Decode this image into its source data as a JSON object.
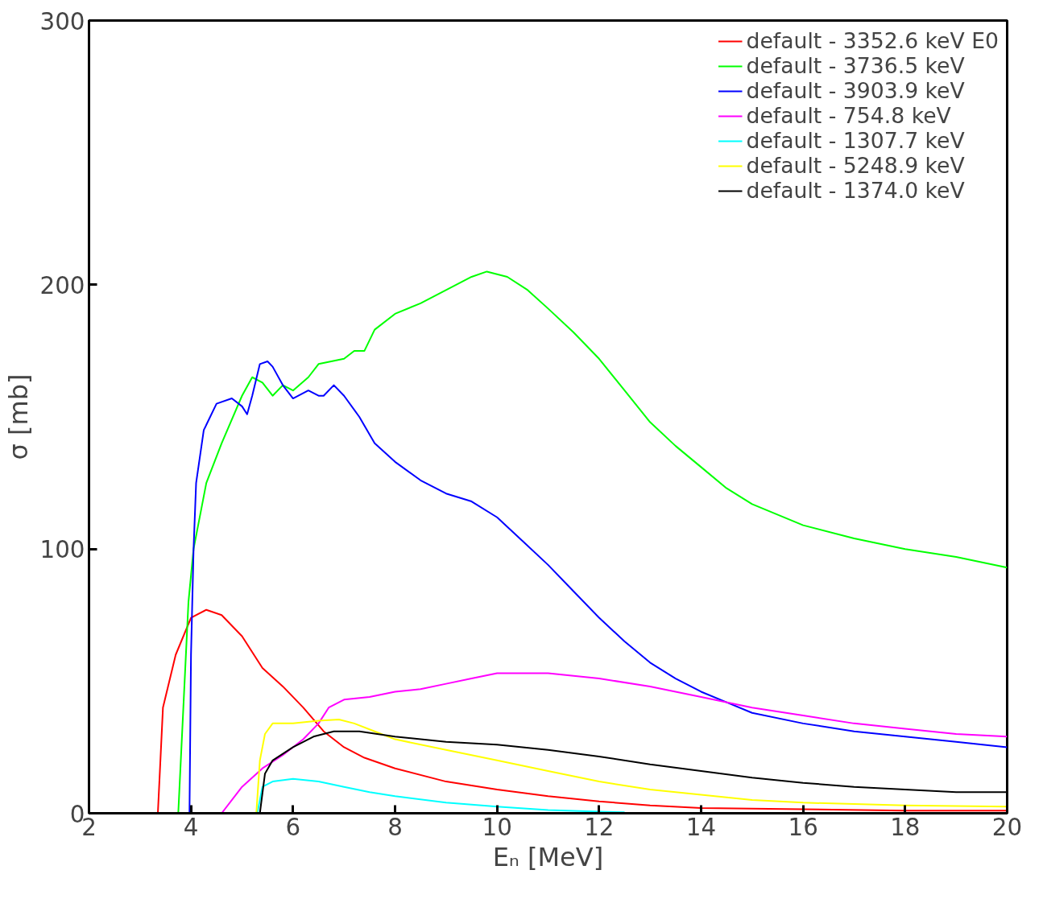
{
  "chart_data": {
    "type": "line",
    "xlabel": "Eₙ [MeV]",
    "ylabel": "σ [mb]",
    "xlim": [
      2,
      20
    ],
    "ylim": [
      0,
      300
    ],
    "xticks": [
      2,
      4,
      6,
      8,
      10,
      12,
      14,
      16,
      18,
      20
    ],
    "yticks": [
      0,
      100,
      200,
      300
    ],
    "grid": false,
    "legend": "top right",
    "marker": "none",
    "line_style": "solid",
    "series": [
      {
        "name": "default - 3352.6 keV E0",
        "color": "#ff0000",
        "x": [
          3.35,
          3.45,
          3.7,
          4.0,
          4.3,
          4.6,
          5.0,
          5.4,
          5.8,
          6.2,
          6.6,
          7.0,
          7.4,
          8,
          9,
          10,
          11,
          12,
          13,
          14,
          16,
          18,
          20
        ],
        "values": [
          0,
          40,
          60,
          74,
          77,
          75,
          67,
          55,
          48,
          40,
          31,
          25,
          21,
          17,
          12,
          9,
          6.5,
          4.5,
          3,
          2,
          1.5,
          1,
          1
        ]
      },
      {
        "name": "default - 3736.5 keV",
        "color": "#00ff00",
        "x": [
          3.75,
          3.85,
          3.95,
          4.05,
          4.3,
          4.6,
          5.0,
          5.2,
          5.4,
          5.6,
          5.8,
          6.0,
          6.3,
          6.5,
          7.0,
          7.2,
          7.4,
          7.6,
          8,
          8.5,
          9,
          9.5,
          9.8,
          10.2,
          10.6,
          11,
          11.5,
          12,
          12.5,
          13,
          13.5,
          14,
          14.5,
          15,
          16,
          17,
          18,
          19,
          20
        ],
        "values": [
          0,
          40,
          80,
          100,
          125,
          140,
          158,
          165,
          163,
          158,
          162,
          160,
          165,
          170,
          172,
          175,
          175,
          183,
          189,
          193,
          198,
          203,
          205,
          203,
          198,
          191,
          182,
          172,
          160,
          148,
          139,
          131,
          123,
          117,
          109,
          104,
          100,
          97,
          93
        ]
      },
      {
        "name": "default - 3903.9 keV",
        "color": "#0000ff",
        "x": [
          3.97,
          4.0,
          4.05,
          4.1,
          4.25,
          4.5,
          4.8,
          5.0,
          5.1,
          5.2,
          5.35,
          5.5,
          5.6,
          5.8,
          6.0,
          6.3,
          6.5,
          6.6,
          6.8,
          7.0,
          7.3,
          7.6,
          8,
          8.5,
          9,
          9.5,
          10,
          10.5,
          11,
          11.5,
          12,
          12.5,
          13,
          13.5,
          14,
          14.5,
          15,
          16,
          17,
          18,
          19,
          20
        ],
        "values": [
          0,
          60,
          100,
          125,
          145,
          155,
          157,
          154,
          151,
          158,
          170,
          171,
          169,
          162,
          157,
          160,
          158,
          158,
          162,
          158,
          150,
          140,
          133,
          126,
          121,
          118,
          112,
          103,
          94,
          84,
          74,
          65,
          57,
          51,
          46,
          42,
          38,
          34,
          31,
          29,
          27,
          25
        ]
      },
      {
        "name": "default - 754.8 keV",
        "color": "#ff00ff",
        "x": [
          4.6,
          5.0,
          5.4,
          5.8,
          6.2,
          6.5,
          6.7,
          7.0,
          7.5,
          8,
          8.5,
          9,
          9.5,
          10,
          10.5,
          11,
          11.5,
          12,
          13,
          14,
          15,
          16,
          17,
          18,
          19,
          20
        ],
        "values": [
          0,
          10,
          17,
          22,
          28,
          34,
          40,
          43,
          44,
          46,
          47,
          49,
          51,
          53,
          53,
          53,
          52,
          51,
          48,
          44,
          40,
          37,
          34,
          32,
          30,
          29
        ]
      },
      {
        "name": "default - 1307.7 keV",
        "color": "#00ffff",
        "x": [
          5.3,
          5.4,
          5.6,
          6,
          6.5,
          7,
          7.5,
          8,
          9,
          10,
          11,
          12,
          12.5
        ],
        "values": [
          0,
          10,
          12,
          13,
          12,
          10,
          8,
          6.5,
          4,
          2.5,
          1.2,
          0.6,
          0.4
        ]
      },
      {
        "name": "default - 5248.9 keV",
        "color": "#ffff00",
        "x": [
          5.28,
          5.35,
          5.45,
          5.6,
          6,
          6.5,
          6.9,
          7.2,
          7.6,
          8,
          9,
          10,
          11,
          12,
          13,
          14,
          15,
          16,
          18,
          20
        ],
        "values": [
          0,
          20,
          30,
          34,
          34,
          35,
          35.5,
          34,
          31,
          28,
          24,
          20,
          16,
          12,
          9,
          7,
          5,
          4,
          3,
          2.5
        ]
      },
      {
        "name": "default - 1374.0 keV",
        "color": "#000000",
        "x": [
          5.35,
          5.45,
          5.6,
          6.0,
          6.4,
          6.8,
          7.3,
          8,
          9,
          10,
          11,
          12,
          13,
          14,
          15,
          16,
          17,
          18,
          19,
          20
        ],
        "values": [
          0,
          15,
          20,
          25,
          29,
          31,
          31,
          29,
          27,
          26,
          24,
          21.5,
          18.5,
          16,
          13.5,
          11.5,
          10,
          9,
          8,
          8
        ]
      }
    ]
  }
}
